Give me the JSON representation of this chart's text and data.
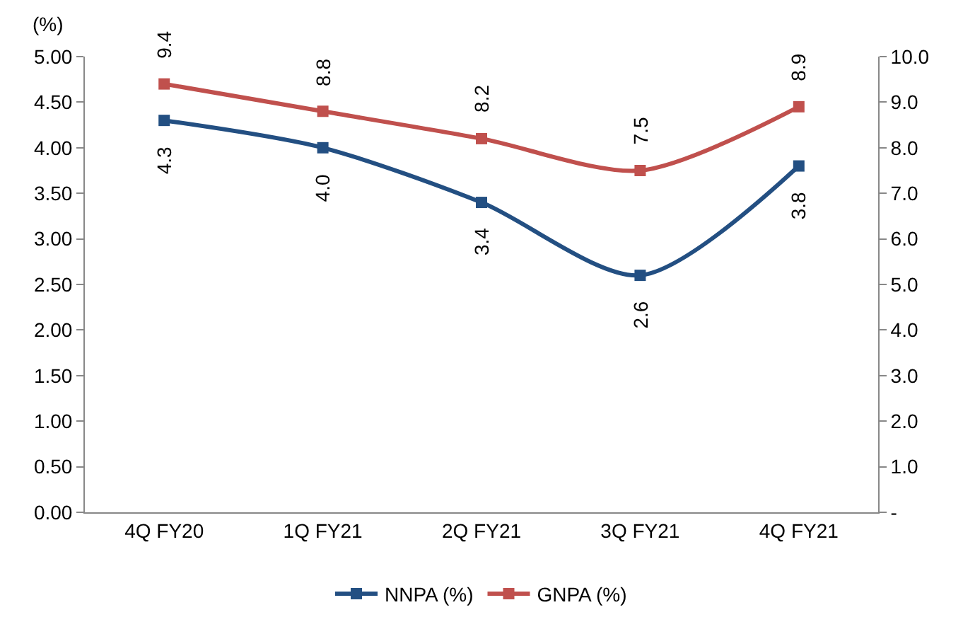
{
  "chart_data": {
    "type": "line",
    "ylabel": "(%)",
    "categories": [
      "4Q FY20",
      "1Q FY21",
      "2Q FY21",
      "3Q FY21",
      "4Q FY21"
    ],
    "series": [
      {
        "name": "NNPA (%)",
        "color": "#234f82",
        "values": [
          4.3,
          4.0,
          3.4,
          2.6,
          3.8
        ],
        "value_labels": [
          "4.3",
          "4.0",
          "3.4",
          "2.6",
          "3.8"
        ]
      },
      {
        "name": "GNPA (%)",
        "color": "#c0504d",
        "axis": "y2",
        "values": [
          9.4,
          8.8,
          8.2,
          7.5,
          8.9
        ],
        "value_labels": [
          "9.4",
          "8.8",
          "8.2",
          "7.5",
          "8.9"
        ]
      }
    ],
    "ylim": [
      0,
      5
    ],
    "yticks": [
      {
        "value": 0,
        "label": "0.00"
      },
      {
        "value": 0.5,
        "label": "0.50"
      },
      {
        "value": 1,
        "label": "1.00"
      },
      {
        "value": 1.5,
        "label": "1.50"
      },
      {
        "value": 2,
        "label": "2.00"
      },
      {
        "value": 2.5,
        "label": "2.50"
      },
      {
        "value": 3,
        "label": "3.00"
      },
      {
        "value": 3.5,
        "label": "3.50"
      },
      {
        "value": 4,
        "label": "4.00"
      },
      {
        "value": 4.5,
        "label": "4.50"
      },
      {
        "value": 5,
        "label": "5.00"
      }
    ],
    "y2lim": [
      0,
      10
    ],
    "y2ticks": [
      {
        "value": 0,
        "label": "-"
      },
      {
        "value": 1,
        "label": "1.0"
      },
      {
        "value": 2,
        "label": "2.0"
      },
      {
        "value": 3,
        "label": "3.0"
      },
      {
        "value": 4,
        "label": "4.0"
      },
      {
        "value": 5,
        "label": "5.0"
      },
      {
        "value": 6,
        "label": "6.0"
      },
      {
        "value": 7,
        "label": "7.0"
      },
      {
        "value": 8,
        "label": "8.0"
      },
      {
        "value": 9,
        "label": "9.0"
      },
      {
        "value": 10,
        "label": "10.0"
      }
    ],
    "grid": false,
    "legend": "bottom",
    "marker": "square",
    "line_style": "solid"
  }
}
